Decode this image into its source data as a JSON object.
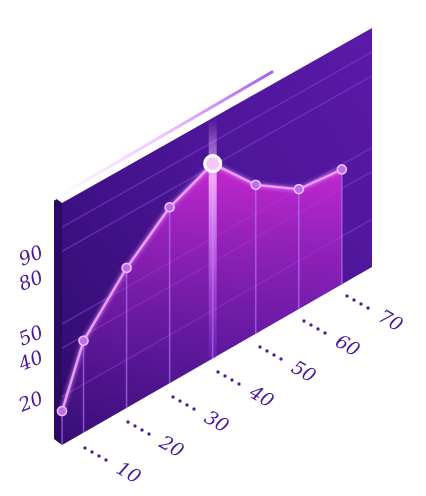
{
  "chart_data": {
    "type": "line",
    "title": "",
    "xlabel": "",
    "ylabel": "",
    "x": [
      5,
      10,
      20,
      30,
      40,
      50,
      60,
      70
    ],
    "y": [
      14,
      38,
      58,
      73,
      81,
      62,
      50,
      48
    ],
    "highlight_index": 4,
    "xlim": [
      5,
      77
    ],
    "ylim": [
      0,
      100
    ],
    "x_ticks": [
      "10",
      "20",
      "30",
      "40",
      "50",
      "60",
      "70"
    ],
    "y_ticks": [
      "20",
      "40",
      "50",
      "80",
      "90"
    ],
    "grid": true,
    "legend": "none",
    "colors": {
      "panel_dark": "#3a0f7e",
      "panel_mid": "#5a1aa6",
      "panel_edge": "#e6d8ff",
      "line": "#e58bff",
      "area_top": "#d22bd8",
      "area_bottom": "#6a1fb0",
      "tick_text": "#4b1a9a",
      "dots": "#4b1a9a"
    }
  }
}
